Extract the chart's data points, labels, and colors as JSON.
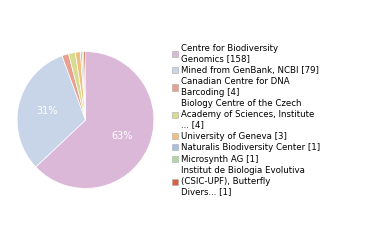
{
  "labels": [
    "Centre for Biodiversity\nGenomics [158]",
    "Mined from GenBank, NCBI [79]",
    "Canadian Centre for DNA\nBarcoding [4]",
    "Biology Centre of the Czech\nAcademy of Sciences, Institute\n... [4]",
    "University of Geneva [3]",
    "Naturalis Biodiversity Center [1]",
    "Microsynth AG [1]",
    "Institut de Biologia Evolutiva\n(CSIC-UPF), Butterfly\nDivers... [1]"
  ],
  "values": [
    158,
    79,
    4,
    4,
    3,
    1,
    1,
    1
  ],
  "colors": [
    "#dbb8d8",
    "#c8d5e8",
    "#e8a090",
    "#d8dc90",
    "#f0c080",
    "#a8c0e0",
    "#b0d8a0",
    "#d96040"
  ],
  "background_color": "#ffffff",
  "text_color": "#ffffff",
  "fontsize": 7,
  "legend_fontsize": 6.2,
  "startangle": 90
}
